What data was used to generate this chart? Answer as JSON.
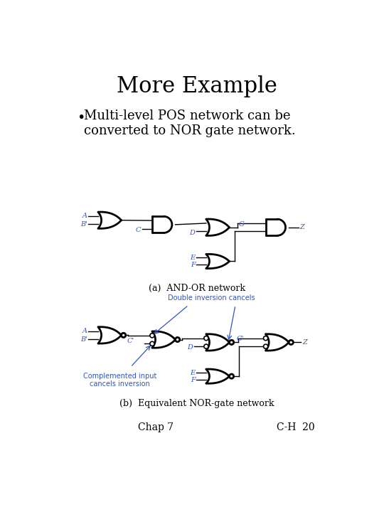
{
  "title": "More Example",
  "bullet": "Multi-level POS network can be\nconverted to NOR gate network.",
  "footer_left": "Chap 7",
  "footer_right": "C-H  20",
  "bg_color": "#ffffff",
  "title_fontsize": 22,
  "bullet_fontsize": 13,
  "footer_fontsize": 10,
  "label_a": "A",
  "label_b": "B'",
  "label_c": "C",
  "label_d": "D",
  "label_e": "E",
  "label_f": "F",
  "label_g": "G",
  "label_z": "Z",
  "caption_a": "(a)  AND-OR network",
  "caption_b": "(b)  Equivalent NOR-gate network",
  "annot_double": "Double inversion cancels",
  "annot_comp": "Complemented input\ncancels inversion",
  "label_cprime": "C'",
  "label_gprime": "G'",
  "blue_color": "#3355bb",
  "gate_lw": 2.0,
  "wire_lw": 1.0
}
